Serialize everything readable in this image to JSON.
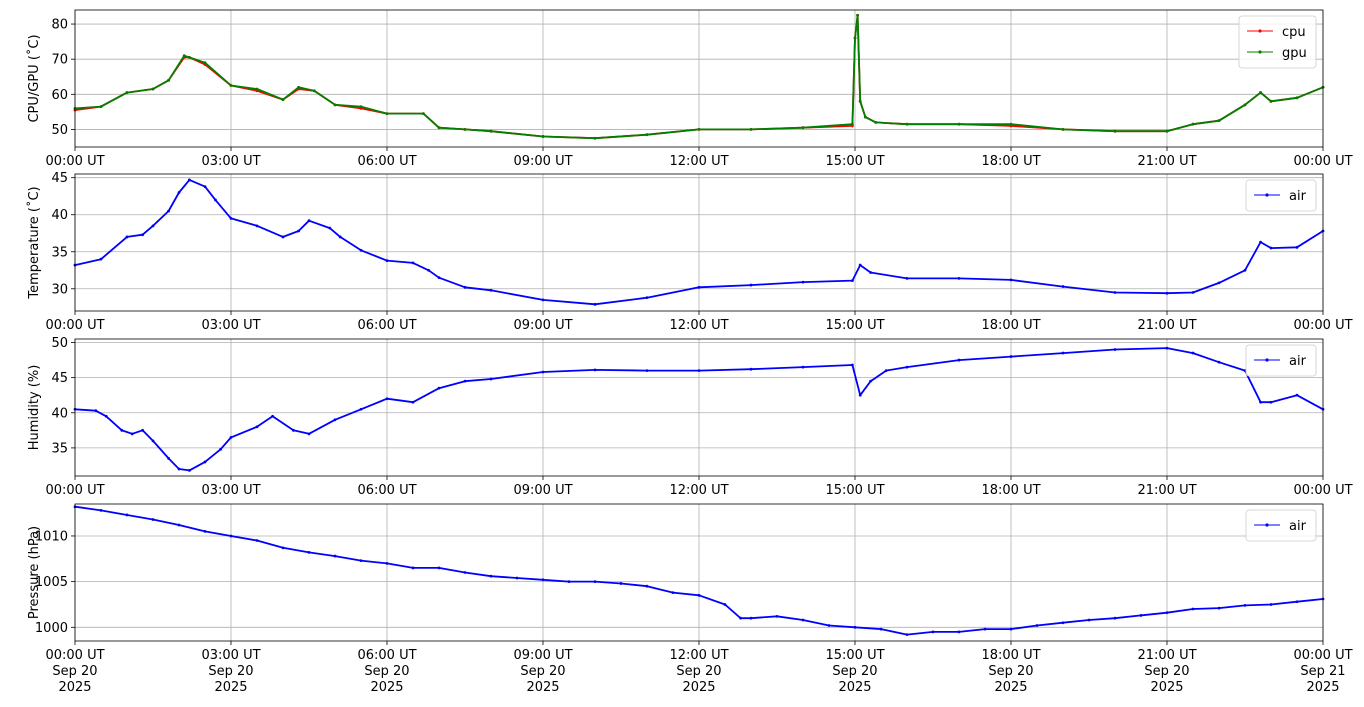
{
  "chart_data": [
    {
      "type": "line",
      "ylabel": "CPU/GPU (˚C)",
      "xlim_hours": [
        0,
        24
      ],
      "ylim": [
        45,
        84
      ],
      "yticks": [
        50,
        60,
        70,
        80
      ],
      "xtick_labels": [
        "00:00 UT",
        "03:00 UT",
        "06:00 UT",
        "09:00 UT",
        "12:00 UT",
        "15:00 UT",
        "18:00 UT",
        "21:00 UT",
        "00:00 UT"
      ],
      "grid": true,
      "legend_position": "top-right",
      "series": [
        {
          "name": "cpu",
          "color": "#ff0000",
          "x": [
            0,
            0.5,
            1.0,
            1.5,
            1.8,
            2.1,
            2.2,
            2.5,
            3.0,
            3.5,
            4.0,
            4.3,
            4.6,
            5.0,
            5.5,
            6.0,
            6.7,
            7.0,
            7.5,
            8.0,
            9.0,
            10.0,
            11.0,
            12.0,
            13.0,
            14.0,
            14.95,
            15.0,
            15.05,
            15.1,
            15.2,
            15.4,
            16.0,
            17.0,
            18.0,
            19.0,
            20.0,
            21.0,
            21.5,
            22.0,
            22.5,
            22.8,
            23.0,
            23.5,
            24.0
          ],
          "y": [
            55.5,
            56.5,
            60.5,
            61.5,
            64,
            70.5,
            70.5,
            68.5,
            62.5,
            61,
            58.5,
            61.5,
            61,
            57,
            56,
            54.5,
            54.5,
            50.5,
            50,
            49.5,
            48,
            47.5,
            48.5,
            50,
            50,
            50.5,
            51,
            76,
            82.5,
            58,
            53.5,
            52,
            51.5,
            51.5,
            51,
            50,
            49.5,
            49.5,
            51.5,
            52.5,
            57,
            60.5,
            58,
            59,
            62
          ]
        },
        {
          "name": "gpu",
          "color": "#008000",
          "x": [
            0,
            0.5,
            1.0,
            1.5,
            1.8,
            2.1,
            2.2,
            2.5,
            3.0,
            3.5,
            4.0,
            4.3,
            4.6,
            5.0,
            5.5,
            6.0,
            6.7,
            7.0,
            7.5,
            8.0,
            9.0,
            10.0,
            11.0,
            12.0,
            13.0,
            14.0,
            14.95,
            15.0,
            15.05,
            15.1,
            15.2,
            15.4,
            16.0,
            17.0,
            18.0,
            19.0,
            20.0,
            21.0,
            21.5,
            22.0,
            22.5,
            22.8,
            23.0,
            23.5,
            24.0
          ],
          "y": [
            56,
            56.5,
            60.5,
            61.5,
            64,
            71,
            70.5,
            69,
            62.5,
            61.5,
            58.5,
            62,
            61,
            57,
            56.5,
            54.5,
            54.5,
            50.5,
            50,
            49.5,
            48,
            47.5,
            48.5,
            50,
            50,
            50.5,
            51.5,
            76,
            82.5,
            58,
            53.5,
            52,
            51.5,
            51.5,
            51.5,
            50,
            49.5,
            49.5,
            51.5,
            52.5,
            57,
            60.5,
            58,
            59,
            62
          ]
        }
      ]
    },
    {
      "type": "line",
      "ylabel": "Temperature (˚C)",
      "xlim_hours": [
        0,
        24
      ],
      "ylim": [
        27,
        45.5
      ],
      "yticks": [
        30,
        35,
        40,
        45
      ],
      "xtick_labels": [
        "00:00 UT",
        "03:00 UT",
        "06:00 UT",
        "09:00 UT",
        "12:00 UT",
        "15:00 UT",
        "18:00 UT",
        "21:00 UT",
        "00:00 UT"
      ],
      "grid": true,
      "legend_position": "top-right",
      "series": [
        {
          "name": "air",
          "color": "#0000ff",
          "x": [
            0,
            0.5,
            1.0,
            1.3,
            1.5,
            1.8,
            2.0,
            2.2,
            2.5,
            2.7,
            3.0,
            3.5,
            4.0,
            4.3,
            4.5,
            4.9,
            5.1,
            5.5,
            6.0,
            6.5,
            6.8,
            7.0,
            7.5,
            8.0,
            9.0,
            10.0,
            11.0,
            12.0,
            13.0,
            14.0,
            14.95,
            15.1,
            15.3,
            16.0,
            17.0,
            18.0,
            19.0,
            20.0,
            21.0,
            21.5,
            22.0,
            22.5,
            22.8,
            23.0,
            23.5,
            24.0
          ],
          "y": [
            33.2,
            34,
            37,
            37.3,
            38.5,
            40.5,
            43,
            44.7,
            43.8,
            42,
            39.5,
            38.5,
            37,
            37.8,
            39.2,
            38.2,
            37,
            35.2,
            33.8,
            33.5,
            32.5,
            31.5,
            30.2,
            29.8,
            28.5,
            27.9,
            28.8,
            30.2,
            30.5,
            30.9,
            31.1,
            33.2,
            32.2,
            31.4,
            31.4,
            31.2,
            30.3,
            29.5,
            29.4,
            29.5,
            30.8,
            32.5,
            36.3,
            35.5,
            35.6,
            37.8
          ]
        }
      ]
    },
    {
      "type": "line",
      "ylabel": "Humidity (%)",
      "xlim_hours": [
        0,
        24
      ],
      "ylim": [
        31,
        50.5
      ],
      "yticks": [
        35,
        40,
        45,
        50
      ],
      "xtick_labels": [
        "00:00 UT",
        "03:00 UT",
        "06:00 UT",
        "09:00 UT",
        "12:00 UT",
        "15:00 UT",
        "18:00 UT",
        "21:00 UT",
        "00:00 UT"
      ],
      "grid": true,
      "legend_position": "top-right",
      "series": [
        {
          "name": "air",
          "color": "#0000ff",
          "x": [
            0,
            0.4,
            0.6,
            0.9,
            1.1,
            1.3,
            1.5,
            1.8,
            2.0,
            2.2,
            2.5,
            2.8,
            3.0,
            3.5,
            3.8,
            4.2,
            4.5,
            5.0,
            5.5,
            6.0,
            6.5,
            7.0,
            7.5,
            8.0,
            9.0,
            10.0,
            11.0,
            12.0,
            13.0,
            14.0,
            14.95,
            15.1,
            15.3,
            15.6,
            16.0,
            17.0,
            18.0,
            19.0,
            20.0,
            21.0,
            21.5,
            22.0,
            22.5,
            22.8,
            23.0,
            23.5,
            24.0
          ],
          "y": [
            40.5,
            40.3,
            39.5,
            37.5,
            37,
            37.5,
            36,
            33.5,
            32,
            31.8,
            33,
            34.8,
            36.5,
            38,
            39.5,
            37.5,
            37,
            39,
            40.5,
            42,
            41.5,
            43.5,
            44.5,
            44.8,
            45.8,
            46.1,
            46,
            46,
            46.2,
            46.5,
            46.8,
            42.5,
            44.5,
            46,
            46.5,
            47.5,
            48,
            48.5,
            49,
            49.2,
            48.5,
            47.2,
            46,
            41.5,
            41.5,
            42.5,
            40.5
          ]
        }
      ]
    },
    {
      "type": "line",
      "ylabel": "Pressure (hPa)",
      "xlim_hours": [
        0,
        24
      ],
      "ylim": [
        998.5,
        1013.5
      ],
      "yticks": [
        1000,
        1005,
        1010
      ],
      "xtick_labels": [
        "00:00 UT\nSep 20\n2025",
        "03:00 UT\nSep 20\n2025",
        "06:00 UT\nSep 20\n2025",
        "09:00 UT\nSep 20\n2025",
        "12:00 UT\nSep 20\n2025",
        "15:00 UT\nSep 20\n2025",
        "18:00 UT\nSep 20\n2025",
        "21:00 UT\nSep 20\n2025",
        "00:00 UT\nSep 21\n2025"
      ],
      "grid": true,
      "legend_position": "top-right",
      "series": [
        {
          "name": "air",
          "color": "#0000ff",
          "x": [
            0,
            0.5,
            1.0,
            1.5,
            2.0,
            2.5,
            3.0,
            3.5,
            4.0,
            4.5,
            5.0,
            5.5,
            6.0,
            6.5,
            7.0,
            7.5,
            8.0,
            8.5,
            9.0,
            9.5,
            10.0,
            10.5,
            11.0,
            11.5,
            12.0,
            12.5,
            12.8,
            13.0,
            13.5,
            14.0,
            14.5,
            15.0,
            15.5,
            16.0,
            16.5,
            17.0,
            17.5,
            18.0,
            18.5,
            19.0,
            19.5,
            20.0,
            20.5,
            21.0,
            21.5,
            22.0,
            22.5,
            23.0,
            23.5,
            24.0
          ],
          "y": [
            1013.2,
            1012.8,
            1012.3,
            1011.8,
            1011.2,
            1010.5,
            1010,
            1009.5,
            1008.7,
            1008.2,
            1007.8,
            1007.3,
            1007,
            1006.5,
            1006.5,
            1006,
            1005.6,
            1005.4,
            1005.2,
            1005,
            1005,
            1004.8,
            1004.5,
            1003.8,
            1003.5,
            1002.5,
            1001,
            1001,
            1001.2,
            1000.8,
            1000.2,
            1000,
            999.8,
            999.2,
            999.5,
            999.5,
            999.8,
            999.8,
            1000.2,
            1000.5,
            1000.8,
            1001,
            1001.3,
            1001.6,
            1002,
            1002.1,
            1002.4,
            1002.5,
            1002.8,
            1003.1
          ]
        }
      ]
    }
  ]
}
